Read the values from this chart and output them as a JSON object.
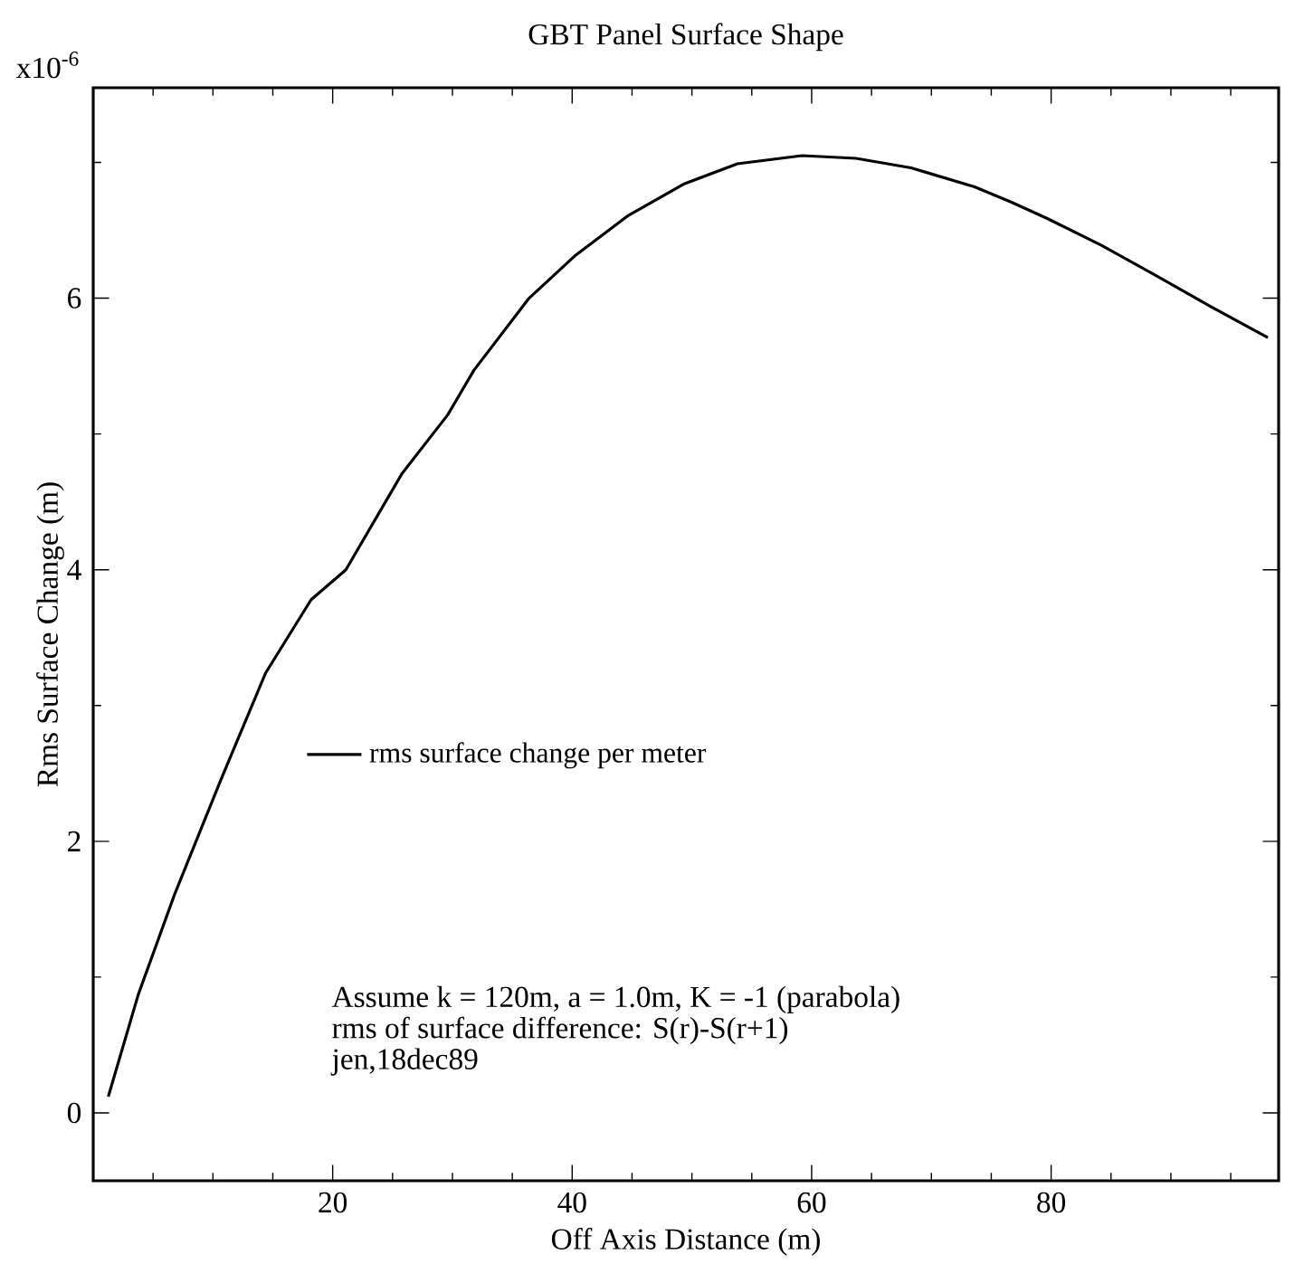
{
  "chart_data": {
    "type": "line",
    "title": "GBT Panel Surface Shape",
    "xlabel": "Off Axis Distance (m)",
    "ylabel": "Rms Surface Change (m)",
    "x": [
      1.26,
      3.76,
      6.8,
      10.6,
      14.4,
      18.2,
      21.1,
      25.8,
      29.6,
      31.8,
      36.4,
      40.2,
      44.7,
      49.3,
      53.8,
      59.2,
      63.7,
      68.3,
      73.6,
      76.6,
      79.6,
      84.2,
      88.7,
      93.3,
      98.1
    ],
    "series": [
      {
        "name": "rms surface change per meter",
        "color": "#000000",
        "values": [
          0.12,
          0.87,
          1.61,
          2.44,
          3.24,
          3.78,
          4.0,
          4.71,
          5.14,
          5.47,
          6.0,
          6.31,
          6.61,
          6.84,
          6.99,
          7.05,
          7.03,
          6.96,
          6.82,
          6.71,
          6.59,
          6.39,
          6.17,
          5.94,
          5.71
        ]
      }
    ],
    "xlim": [
      0,
      99
    ],
    "ylim": [
      -0.5,
      7.55
    ],
    "xticks": [
      20,
      40,
      60,
      80
    ],
    "yticks": [
      0,
      2,
      4,
      6
    ],
    "legend": "left",
    "marker": "none",
    "line_style": "solid",
    "grid": false,
    "annotations": [
      "x10$^{-6}$",
      "Assume k = 120m, a = 1.0m, K = -1 (parabola)",
      "rms of surface difference: S(r)-S(r+1)",
      "jen,18dec89"
    ]
  }
}
